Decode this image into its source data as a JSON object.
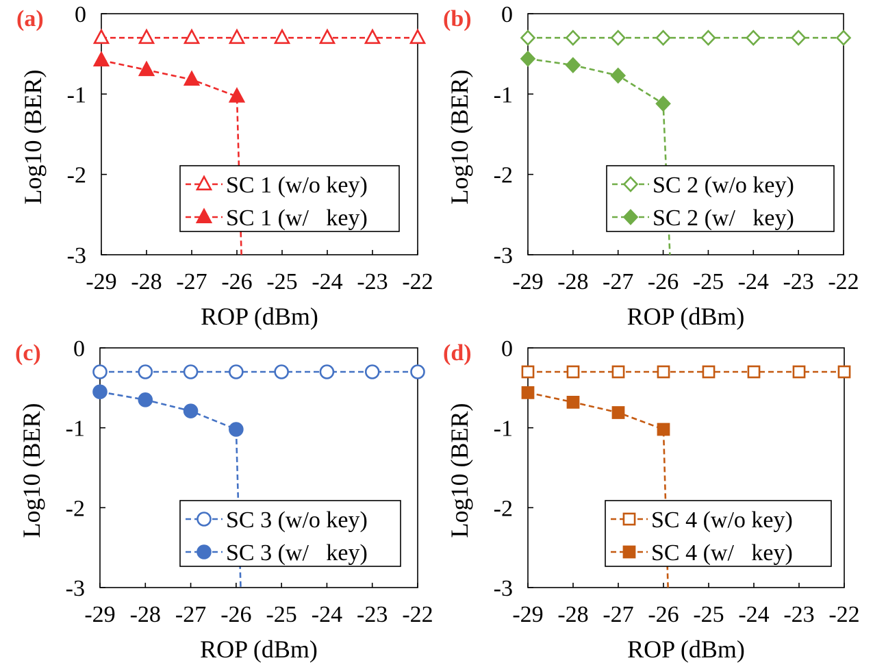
{
  "chart_data": [
    {
      "type": "line",
      "panel_label": "(a)",
      "label_color": "#ee4035",
      "color": "#ee2b2b",
      "marker": "triangle",
      "xlabel": "ROP (dBm)",
      "ylabel": "Log10 (BER)",
      "xlim": [
        -29,
        -22
      ],
      "ylim": [
        -3,
        0
      ],
      "xticks": [
        "-29",
        "-28",
        "-27",
        "-26",
        "-25",
        "-24",
        "-23",
        "-22"
      ],
      "yticks": [
        "0",
        "-1",
        "-2",
        "-3"
      ],
      "legend_position": "bottom-right",
      "series": [
        {
          "name": "SC 1 (w/o key)",
          "filled": false,
          "x": [
            -29,
            -28,
            -27,
            -26,
            -25,
            -24,
            -23,
            -22
          ],
          "y": [
            -0.3,
            -0.3,
            -0.3,
            -0.3,
            -0.3,
            -0.3,
            -0.3,
            -0.3
          ],
          "tail": null
        },
        {
          "name": "SC 1 (w/   key)",
          "filled": true,
          "x": [
            -29,
            -28,
            -27,
            -26
          ],
          "y": [
            -0.58,
            -0.7,
            -0.82,
            -1.03
          ],
          "tail": [
            -25.9,
            -3
          ]
        }
      ]
    },
    {
      "type": "line",
      "panel_label": "(b)",
      "label_color": "#ee4035",
      "color": "#70ad47",
      "marker": "diamond",
      "xlabel": "ROP (dBm)",
      "ylabel": "Log10 (BER)",
      "xlim": [
        -29,
        -22
      ],
      "ylim": [
        -3,
        0
      ],
      "xticks": [
        "-29",
        "-28",
        "-27",
        "-26",
        "-25",
        "-24",
        "-23",
        "-22"
      ],
      "yticks": [
        "0",
        "-1",
        "-2",
        "-3"
      ],
      "legend_position": "bottom-right",
      "series": [
        {
          "name": "SC 2 (w/o key)",
          "filled": false,
          "x": [
            -29,
            -28,
            -27,
            -26,
            -25,
            -24,
            -23,
            -22
          ],
          "y": [
            -0.3,
            -0.3,
            -0.3,
            -0.3,
            -0.3,
            -0.3,
            -0.3,
            -0.3
          ],
          "tail": null
        },
        {
          "name": "SC 2 (w/   key)",
          "filled": true,
          "x": [
            -29,
            -28,
            -27,
            -26
          ],
          "y": [
            -0.56,
            -0.64,
            -0.77,
            -1.12
          ],
          "tail": [
            -25.85,
            -3
          ]
        }
      ]
    },
    {
      "type": "line",
      "panel_label": "(c)",
      "label_color": "#ee4035",
      "color": "#4472c4",
      "marker": "circle",
      "xlabel": "ROP (dBm)",
      "ylabel": "Log10 (BER)",
      "xlim": [
        -29,
        -22
      ],
      "ylim": [
        -3,
        0
      ],
      "xticks": [
        "-29",
        "-28",
        "-27",
        "-26",
        "-25",
        "-24",
        "-23",
        "-22"
      ],
      "yticks": [
        "0",
        "-1",
        "-2",
        "-3"
      ],
      "legend_position": "bottom-right",
      "series": [
        {
          "name": "SC 3 (w/o key)",
          "filled": false,
          "x": [
            -29,
            -28,
            -27,
            -26,
            -25,
            -24,
            -23,
            -22
          ],
          "y": [
            -0.3,
            -0.3,
            -0.3,
            -0.3,
            -0.3,
            -0.3,
            -0.3,
            -0.3
          ],
          "tail": null
        },
        {
          "name": "SC 3 (w/   key)",
          "filled": true,
          "x": [
            -29,
            -28,
            -27,
            -26
          ],
          "y": [
            -0.55,
            -0.65,
            -0.79,
            -1.02
          ],
          "tail": [
            -25.9,
            -3
          ]
        }
      ]
    },
    {
      "type": "line",
      "panel_label": "(d)",
      "label_color": "#ee4035",
      "color": "#c55a11",
      "marker": "square",
      "xlabel": "ROP (dBm)",
      "ylabel": "Log10 (BER)",
      "xlim": [
        -29,
        -22
      ],
      "ylim": [
        -3,
        0
      ],
      "xticks": [
        "-29",
        "-28",
        "-27",
        "-26",
        "-25",
        "-24",
        "-23",
        "-22"
      ],
      "yticks": [
        "0",
        "-1",
        "-2",
        "-3"
      ],
      "legend_position": "bottom-right",
      "series": [
        {
          "name": "SC 4 (w/o key)",
          "filled": false,
          "x": [
            -29,
            -28,
            -27,
            -26,
            -25,
            -24,
            -23,
            -22
          ],
          "y": [
            -0.3,
            -0.3,
            -0.3,
            -0.3,
            -0.3,
            -0.3,
            -0.3,
            -0.3
          ],
          "tail": null
        },
        {
          "name": "SC 4 (w/   key)",
          "filled": true,
          "x": [
            -29,
            -28,
            -27,
            -26
          ],
          "y": [
            -0.56,
            -0.68,
            -0.81,
            -1.02
          ],
          "tail": [
            -25.9,
            -3
          ]
        }
      ]
    }
  ]
}
